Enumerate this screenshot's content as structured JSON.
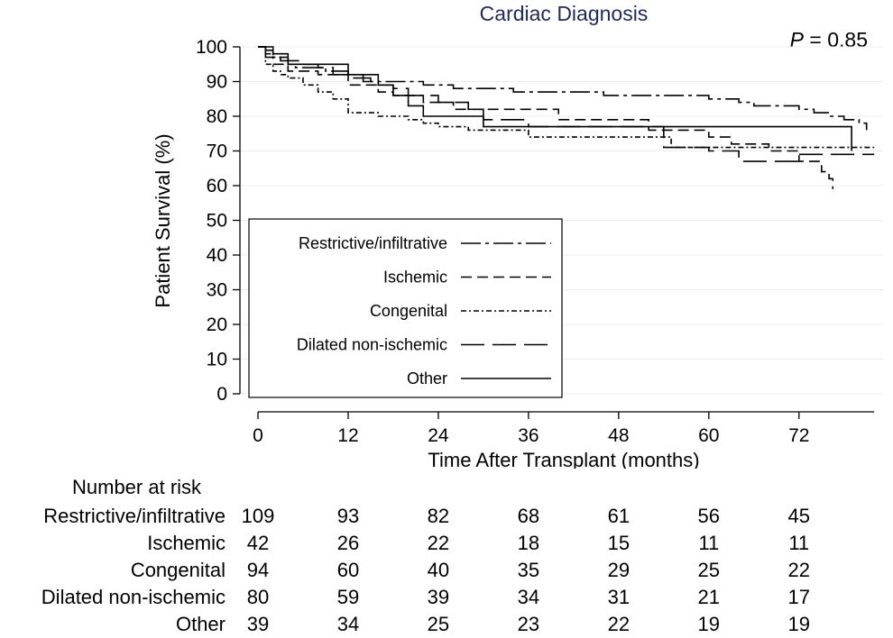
{
  "chart_data": {
    "type": "line",
    "title": "Cardiac Diagnosis",
    "annotation": {
      "p_prefix": "P",
      "p_text": " = 0.85"
    },
    "xlabel": "Time After Transplant (months)",
    "ylabel": "Patient Survival (%)",
    "xlim": [
      0,
      82
    ],
    "ylim": [
      0,
      100
    ],
    "xticks": [
      0,
      12,
      24,
      36,
      48,
      60,
      72
    ],
    "yticks": [
      0,
      10,
      20,
      30,
      40,
      50,
      60,
      70,
      80,
      90,
      100
    ],
    "grid": "horizontal",
    "legend_position": "lower-left",
    "series": [
      {
        "name": "Restrictive/infiltrative",
        "dash": "dash-dot-long",
        "x": [
          0,
          1,
          2,
          3,
          4,
          5,
          7,
          9,
          10,
          12,
          14,
          15,
          18,
          22,
          26,
          30,
          34,
          40,
          46,
          48,
          52,
          56,
          60,
          62,
          64,
          66,
          70,
          72,
          74,
          76,
          78,
          80,
          81
        ],
        "y": [
          100,
          98,
          97,
          96,
          95,
          94,
          94,
          93,
          92,
          92,
          91,
          90,
          90,
          89,
          88,
          88,
          87,
          87,
          86,
          86,
          86,
          86,
          85,
          85,
          84,
          83,
          83,
          82,
          81,
          80,
          79,
          78,
          76
        ]
      },
      {
        "name": "Ischemic",
        "dash": "dash",
        "x": [
          0,
          1,
          2,
          4,
          6,
          8,
          10,
          12,
          14,
          16,
          18,
          20,
          22,
          24,
          26,
          28,
          30,
          40,
          48,
          52,
          55,
          60,
          63,
          65,
          68,
          70,
          72,
          74,
          75,
          76,
          76.5
        ],
        "y": [
          100,
          97,
          95,
          93,
          93,
          92,
          92,
          89,
          89,
          87,
          86,
          86,
          84,
          84,
          82,
          82,
          82,
          79,
          79,
          76,
          76,
          74,
          72,
          72,
          70,
          70,
          67,
          67,
          64,
          62,
          59
        ]
      },
      {
        "name": "Congenital",
        "dash": "dash-dot-short",
        "x": [
          0,
          1,
          2,
          3,
          4,
          6,
          8,
          10,
          12,
          14,
          16,
          18,
          20,
          22,
          24,
          28,
          32,
          34,
          36,
          40,
          48,
          55,
          60,
          72,
          82
        ],
        "y": [
          100,
          95,
          93,
          92,
          91,
          89,
          87,
          85,
          81,
          81,
          80,
          80,
          79,
          78,
          77,
          76,
          76,
          76,
          74,
          74,
          74,
          71,
          71,
          71,
          71
        ]
      },
      {
        "name": "Dilated non-ischemic",
        "dash": "long-dash",
        "x": [
          0,
          1,
          2,
          4,
          6,
          8,
          10,
          12,
          14,
          16,
          18,
          20,
          24,
          28,
          30,
          36,
          40,
          48,
          54,
          58,
          60,
          63,
          64,
          66,
          72,
          82
        ],
        "y": [
          100,
          99,
          97,
          96,
          95,
          94,
          93,
          91,
          90,
          89,
          88,
          86,
          84,
          82,
          79,
          77,
          77,
          77,
          71,
          71,
          70,
          70,
          67,
          67,
          69,
          69
        ]
      },
      {
        "name": "Other",
        "dash": "solid",
        "x": [
          0,
          2,
          4,
          6,
          8,
          10,
          12,
          14,
          16,
          18,
          20,
          22,
          26,
          28,
          30,
          36,
          46,
          48,
          52,
          56,
          60,
          64,
          70,
          72,
          78,
          79
        ],
        "y": [
          100,
          98,
          95,
          95,
          95,
          95,
          92,
          92,
          89,
          86,
          83,
          80,
          80,
          80,
          77,
          77,
          77,
          77,
          77,
          77,
          77,
          77,
          77,
          77,
          77,
          70
        ]
      }
    ]
  },
  "risk_table": {
    "header": "Number at risk",
    "rows": [
      {
        "label": "Restrictive/infiltrative",
        "values": [
          "109",
          "93",
          "82",
          "68",
          "61",
          "56",
          "45"
        ]
      },
      {
        "label": "Ischemic",
        "values": [
          "42",
          "26",
          "22",
          "18",
          "15",
          "11",
          "11"
        ]
      },
      {
        "label": "Congenital",
        "values": [
          "94",
          "60",
          "40",
          "35",
          "29",
          "25",
          "22"
        ]
      },
      {
        "label": "Dilated non-ischemic",
        "values": [
          "80",
          "59",
          "39",
          "34",
          "31",
          "21",
          "17"
        ]
      },
      {
        "label": "Other",
        "values": [
          "39",
          "34",
          "25",
          "23",
          "22",
          "19",
          "19"
        ]
      }
    ]
  }
}
